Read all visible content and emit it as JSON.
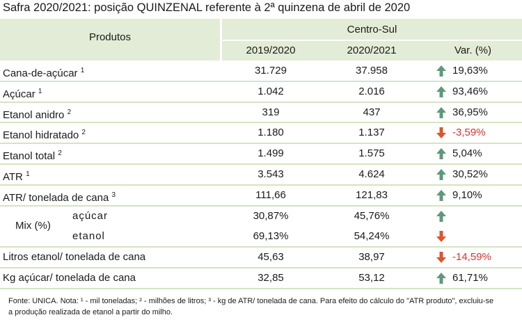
{
  "title": "Safra 2020/2021: posição QUINZENAL referente à 2ª quinzena de abril de 2020",
  "header": {
    "products": "Produtos",
    "region": "Centro-Sul",
    "year1": "2019/2020",
    "year2": "2020/2021",
    "var": "Var. (%)"
  },
  "rows": [
    {
      "label": "Cana-de-açúcar",
      "sup": "1",
      "v1": "31.729",
      "v2": "37.958",
      "var": "19,63%"
    },
    {
      "label": "Açúcar",
      "sup": "1",
      "v1": "1.042",
      "v2": "2.016",
      "var": "93,46%"
    },
    {
      "label": "Etanol anidro",
      "sup": "2",
      "v1": "319",
      "v2": "437",
      "var": "36,95%"
    },
    {
      "label": "Etanol hidratado",
      "sup": "2",
      "v1": "1.180",
      "v2": "1.137",
      "var": "-3,59%"
    },
    {
      "label": "Etanol total",
      "sup": "2",
      "v1": "1.499",
      "v2": "1.575",
      "var": "5,04%"
    },
    {
      "label": "ATR",
      "sup": "1",
      "v1": "3.543",
      "v2": "4.624",
      "var": "30,52%"
    },
    {
      "label": "ATR/ tonelada de cana",
      "sup": "3",
      "v1": "111,66",
      "v2": "121,83",
      "var": "9,10%"
    },
    {
      "label": "Mix (%)",
      "items": [
        {
          "label": "açúcar",
          "v1": "30,87%",
          "v2": "45,76%"
        },
        {
          "label": "etanol",
          "v1": "69,13%",
          "v2": "54,24%"
        }
      ]
    },
    {
      "label": "Litros etanol/ tonelada de cana",
      "v1": "45,63",
      "v2": "38,97",
      "var": "-14,59%"
    },
    {
      "label": "Kg açúcar/ tonelada de cana",
      "v1": "32,85",
      "v2": "53,12",
      "var": "61,71%"
    }
  ],
  "footnote": "Fonte: UNICA. Nota: ¹ - mil toneladas; ² - milhões de litros; ³ - kg de ATR/ tonelada de cana. Para efeito do cálculo do \"ATR produto\", excluiu-se a produção realizada de etanol a partir do milho."
}
